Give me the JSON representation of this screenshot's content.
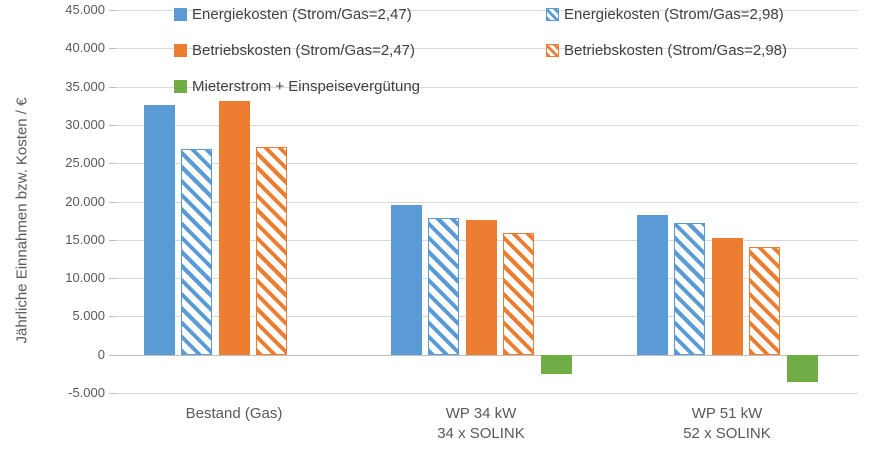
{
  "chart": {
    "background": "#FFFFFF",
    "grid_color": "#D9D9D9",
    "axis_line_color": "#BFBFBF",
    "axis_text_color": "#595959",
    "legend_text_color": "#404040"
  },
  "chart_data": {
    "type": "bar",
    "title": "",
    "xlabel": "",
    "ylabel": "Jährliche Einnahmen bzw. Kosten / €",
    "ylim": [
      -5000,
      45000
    ],
    "ytick_step": 5000,
    "grid": true,
    "legend_position": "top",
    "yticks": [
      {
        "value": 45000,
        "label": "45.000"
      },
      {
        "value": 40000,
        "label": "40.000"
      },
      {
        "value": 35000,
        "label": "35.000"
      },
      {
        "value": 30000,
        "label": "30.000"
      },
      {
        "value": 25000,
        "label": "25.000"
      },
      {
        "value": 20000,
        "label": "20.000"
      },
      {
        "value": 15000,
        "label": "15.000"
      },
      {
        "value": 10000,
        "label": "10.000"
      },
      {
        "value": 5000,
        "label": "5.000"
      },
      {
        "value": 0,
        "label": "0"
      },
      {
        "value": -5000,
        "label": "-5.000"
      }
    ],
    "categories": [
      {
        "label_lines": [
          "Bestand (Gas)"
        ]
      },
      {
        "label_lines": [
          "WP 34 kW",
          "34 x SOLINK"
        ]
      },
      {
        "label_lines": [
          "WP 51 kW",
          "52 x SOLINK"
        ]
      }
    ],
    "series": [
      {
        "name": "Energiekosten (Strom/Gas=2,47)",
        "color": "#5B9BD5",
        "pattern": "solid",
        "values": [
          32600,
          19500,
          18200
        ]
      },
      {
        "name": "Energiekosten (Strom/Gas=2,98)",
        "color": "#5B9BD5",
        "pattern": "diagonal-hatch",
        "values": [
          26900,
          17800,
          17200
        ]
      },
      {
        "name": "Betriebskosten (Strom/Gas=2,47)",
        "color": "#ED7D31",
        "pattern": "solid",
        "values": [
          33100,
          17600,
          15200
        ]
      },
      {
        "name": "Betriebskosten (Strom/Gas=2,98)",
        "color": "#ED7D31",
        "pattern": "diagonal-hatch",
        "values": [
          27100,
          15900,
          14100
        ]
      },
      {
        "name": "Mieterstrom + Einspeisevergütung",
        "color": "#70AD47",
        "pattern": "solid",
        "values": [
          null,
          -2500,
          -3600
        ]
      }
    ],
    "legend_columns": [
      [
        0,
        2,
        4
      ],
      [
        1,
        3
      ]
    ]
  }
}
